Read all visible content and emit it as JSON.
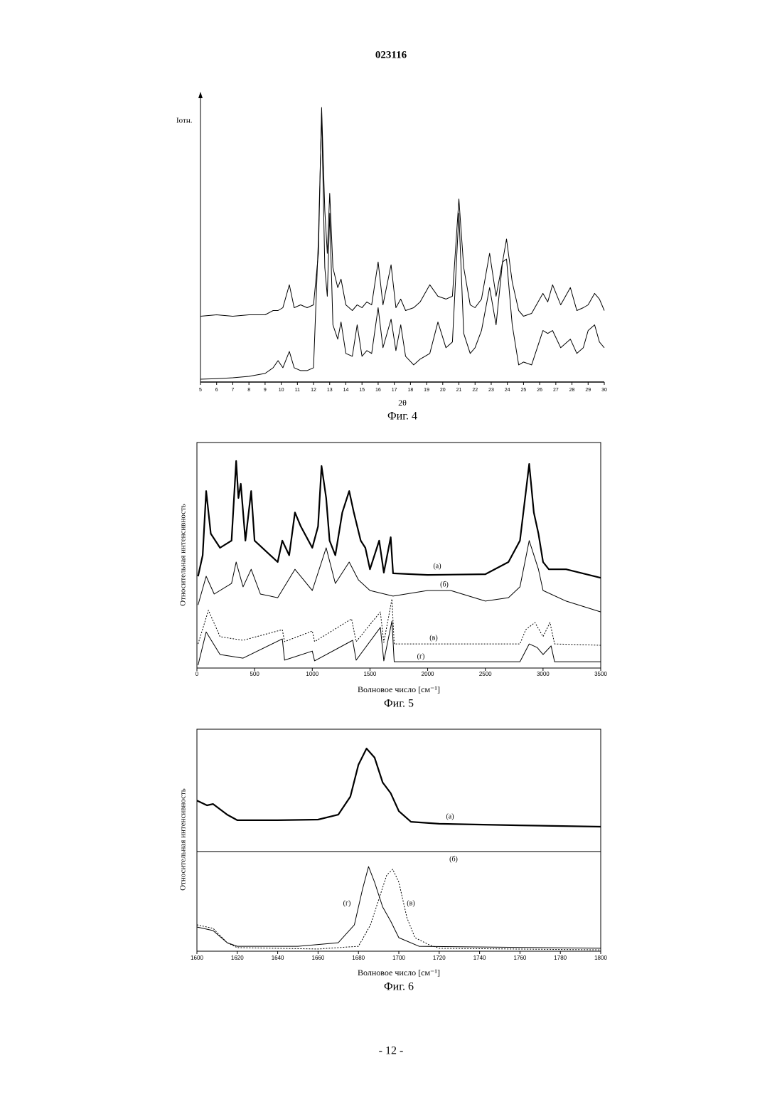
{
  "header": {
    "number": "023116"
  },
  "chart_data": [
    {
      "type": "line",
      "caption": "Фиг. 4",
      "y_label": "Iотн.",
      "x_label": "2θ",
      "xlim": [
        5,
        30
      ],
      "xticks": [
        5,
        6,
        7,
        8,
        9,
        10,
        11,
        12,
        13,
        14,
        15,
        16,
        17,
        18,
        19,
        20,
        21,
        22,
        23,
        24,
        25,
        26,
        27,
        28,
        29,
        30
      ],
      "ylim": [
        0,
        100
      ],
      "x": [
        5,
        6,
        7,
        8,
        9,
        9.5,
        9.8,
        10.1,
        10.5,
        10.8,
        11.2,
        11.6,
        12.0,
        12.3,
        12.5,
        12.7,
        12.85,
        13.0,
        13.2,
        13.5,
        13.7,
        14.0,
        14.4,
        14.7,
        15.0,
        15.3,
        15.6,
        16.0,
        16.3,
        16.8,
        17.1,
        17.4,
        17.7,
        18.2,
        18.6,
        19.2,
        19.7,
        20.2,
        20.6,
        21.0,
        21.3,
        21.7,
        22.0,
        22.4,
        22.9,
        23.3,
        23.7,
        23.95,
        24.3,
        24.7,
        25.0,
        25.5,
        26.2,
        26.5,
        26.8,
        27.3,
        27.9,
        28.3,
        28.7,
        29.0,
        29.4,
        29.7,
        30
      ],
      "series": [
        {
          "color": "#000000",
          "style": "thin",
          "values": [
            23,
            23.5,
            23,
            23.5,
            23.5,
            25,
            25,
            26,
            34,
            26,
            27,
            26,
            27,
            45,
            96,
            60,
            45,
            66,
            40,
            33,
            36,
            27,
            25,
            27,
            26,
            28,
            27,
            42,
            27,
            41,
            26,
            29,
            25,
            26,
            28,
            34,
            30,
            29,
            30,
            64,
            40,
            27,
            26,
            29,
            45,
            30,
            42,
            50,
            35,
            25,
            23,
            24,
            31,
            28,
            34,
            27,
            33,
            25,
            26,
            27,
            31,
            29,
            25
          ]
        },
        {
          "color": "#000000",
          "style": "thin",
          "values": [
            1,
            1.2,
            1.5,
            2,
            3,
            5,
            7.5,
            5,
            10.7,
            5,
            4,
            4,
            5,
            50,
            94,
            40,
            30,
            59,
            20,
            15,
            21,
            10,
            9,
            20,
            9,
            11,
            10,
            26,
            12,
            22,
            11,
            20,
            9,
            6,
            8,
            10,
            21,
            12,
            14,
            59,
            17,
            10,
            12,
            18,
            33,
            20,
            42,
            43,
            20,
            6,
            7,
            6,
            18,
            17,
            18,
            12,
            15,
            10,
            12,
            18,
            20,
            14,
            12
          ]
        }
      ]
    },
    {
      "type": "line",
      "caption": "Фиг. 5",
      "y_label": "Относительная интенсивность",
      "x_label": "Волновое число [см⁻¹]",
      "xlim": [
        0,
        3500
      ],
      "xticks": [
        0,
        500,
        1000,
        1500,
        2000,
        2500,
        3000,
        3500
      ],
      "ylim": [
        0,
        100
      ],
      "frame": true,
      "series": [
        {
          "name": "(а)",
          "color": "#000000",
          "style": "thick",
          "x": [
            10,
            50,
            80,
            120,
            200,
            300,
            340,
            360,
            380,
            420,
            470,
            500,
            600,
            700,
            740,
            800,
            850,
            900,
            1000,
            1050,
            1080,
            1120,
            1150,
            1200,
            1260,
            1320,
            1360,
            1420,
            1460,
            1500,
            1580,
            1620,
            1680,
            1700,
            2000,
            2500,
            2700,
            2800,
            2880,
            2920,
            2960,
            3000,
            3050,
            3200,
            3500
          ],
          "values": [
            40.7,
            50,
            78.5,
            59.6,
            53.3,
            56.5,
            91.8,
            75.4,
            81.7,
            56.5,
            78.5,
            56.5,
            51.7,
            47,
            56.5,
            50,
            69,
            62.8,
            53.3,
            62.8,
            89.6,
            75.4,
            56.5,
            50,
            69,
            78.5,
            69,
            56.5,
            53.3,
            43.8,
            56.5,
            42.3,
            58,
            42,
            41.3,
            41.6,
            47,
            56.5,
            90.5,
            69,
            59.6,
            47,
            43.8,
            43.8,
            40
          ]
        },
        {
          "name": "(б)",
          "color": "#000000",
          "style": "thin",
          "x": [
            10,
            80,
            150,
            300,
            340,
            400,
            470,
            550,
            700,
            850,
            1000,
            1080,
            1120,
            1200,
            1320,
            1400,
            1500,
            1700,
            2000,
            2200,
            2500,
            2700,
            2800,
            2880,
            2960,
            3000,
            3200,
            3500
          ],
          "values": [
            28,
            40.7,
            32.8,
            37.5,
            47,
            36,
            43.8,
            32.8,
            31.2,
            43.8,
            34.4,
            47,
            53.3,
            37.5,
            47,
            39.1,
            34.4,
            31.9,
            34.4,
            34.4,
            29.7,
            31.2,
            36,
            56.5,
            43.8,
            34.4,
            29.7,
            24.9
          ]
        },
        {
          "name": "(в)",
          "color": "#000000",
          "style": "dotted",
          "x": [
            10,
            100,
            200,
            400,
            740,
            760,
            1000,
            1020,
            1340,
            1380,
            1590,
            1620,
            1690,
            1710,
            2800,
            2850,
            2930,
            3000,
            3060,
            3100,
            3500
          ],
          "values": [
            10.7,
            25.6,
            13.9,
            12.3,
            17,
            11.7,
            16.4,
            11.7,
            21.8,
            11.7,
            24.9,
            11.4,
            30.6,
            10.7,
            10.7,
            17,
            20.2,
            13.9,
            20.2,
            10.7,
            10.1
          ]
        },
        {
          "name": "(г)",
          "color": "#000000",
          "style": "thin",
          "x": [
            10,
            80,
            200,
            400,
            740,
            760,
            1000,
            1020,
            1350,
            1380,
            1590,
            1620,
            1690,
            1710,
            2800,
            2880,
            2950,
            3000,
            3070,
            3100,
            3500
          ],
          "values": [
            1.3,
            16,
            6,
            4.4,
            12.9,
            3.5,
            7.5,
            3.2,
            12.3,
            3.5,
            18,
            3.2,
            20.8,
            2.8,
            2.8,
            10.7,
            9.1,
            6,
            9.8,
            2.8,
            2.8
          ]
        }
      ]
    },
    {
      "type": "line",
      "caption": "Фиг. 6",
      "y_label": "Относительная интенсивность",
      "x_label": "Волновое число [см⁻¹]",
      "xlim": [
        1600,
        1800
      ],
      "xticks": [
        1600,
        1620,
        1640,
        1660,
        1680,
        1700,
        1720,
        1740,
        1760,
        1780,
        1800
      ],
      "ylim": [
        0,
        100
      ],
      "frame": true,
      "series": [
        {
          "name": "(а)",
          "color": "#000000",
          "style": "thick",
          "x": [
            1600,
            1605,
            1608,
            1615,
            1620,
            1640,
            1660,
            1670,
            1676,
            1680,
            1684,
            1688,
            1692,
            1696,
            1700,
            1706,
            1720,
            1760,
            1800
          ],
          "values": [
            67.9,
            65.7,
            66.3,
            61.5,
            59,
            59,
            59.3,
            61.5,
            69.6,
            84,
            91.3,
            87.2,
            76,
            71.2,
            63.1,
            58.3,
            57.4,
            56.7,
            56.1
          ]
        },
        {
          "name": "(б)",
          "color": "#000000",
          "style": "thin",
          "x": [
            1600,
            1800
          ],
          "values": [
            44.9,
            44.9
          ]
        },
        {
          "name": "(в)",
          "color": "#000000",
          "style": "dotted",
          "x": [
            1600,
            1608,
            1615,
            1620,
            1660,
            1680,
            1686,
            1690,
            1694,
            1697,
            1700,
            1704,
            1708,
            1715,
            1720,
            1800
          ],
          "values": [
            11.9,
            10.3,
            3.8,
            1.6,
            1,
            2.2,
            11.9,
            23.1,
            34.3,
            36.9,
            31.1,
            15.1,
            6.1,
            2.9,
            1.3,
            0.6
          ]
        },
        {
          "name": "(г)",
          "color": "#000000",
          "style": "thin",
          "x": [
            1600,
            1608,
            1615,
            1620,
            1650,
            1670,
            1678,
            1682,
            1685,
            1688,
            1692,
            1696,
            1700,
            1710,
            1800
          ],
          "values": [
            10.9,
            9.3,
            3.8,
            2.2,
            2.2,
            3.8,
            11.9,
            27.9,
            38.1,
            31.1,
            19.9,
            13.5,
            6.1,
            2.2,
            1.3
          ]
        }
      ]
    }
  ],
  "footer": {
    "page": "- 12 -"
  }
}
